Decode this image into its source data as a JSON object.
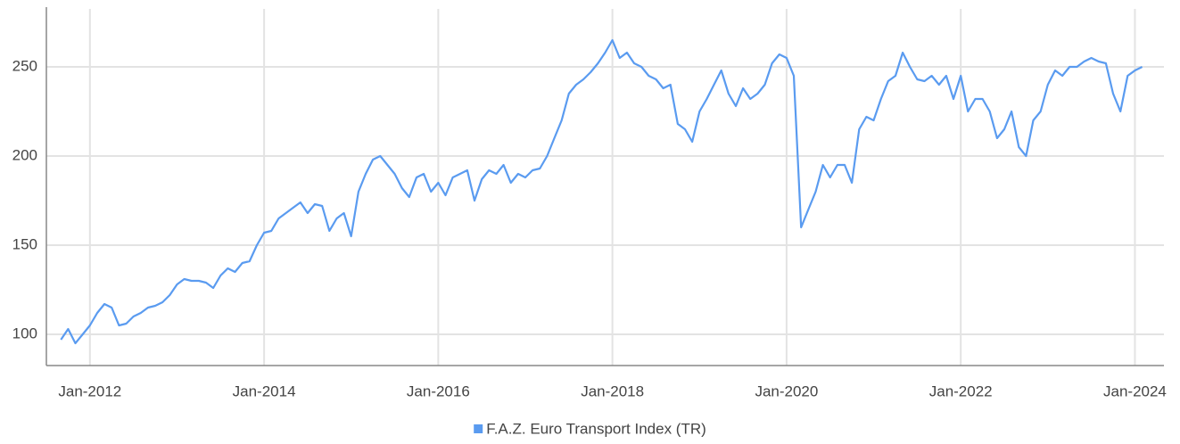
{
  "chart_data": {
    "type": "line",
    "x": [
      "2011-09",
      "2011-10",
      "2011-11",
      "2011-12",
      "2012-01",
      "2012-02",
      "2012-03",
      "2012-04",
      "2012-05",
      "2012-06",
      "2012-07",
      "2012-08",
      "2012-09",
      "2012-10",
      "2012-11",
      "2012-12",
      "2013-01",
      "2013-02",
      "2013-03",
      "2013-04",
      "2013-05",
      "2013-06",
      "2013-07",
      "2013-08",
      "2013-09",
      "2013-10",
      "2013-11",
      "2013-12",
      "2014-01",
      "2014-02",
      "2014-03",
      "2014-04",
      "2014-05",
      "2014-06",
      "2014-07",
      "2014-08",
      "2014-09",
      "2014-10",
      "2014-11",
      "2014-12",
      "2015-01",
      "2015-02",
      "2015-03",
      "2015-04",
      "2015-05",
      "2015-06",
      "2015-07",
      "2015-08",
      "2015-09",
      "2015-10",
      "2015-11",
      "2015-12",
      "2016-01",
      "2016-02",
      "2016-03",
      "2016-04",
      "2016-05",
      "2016-06",
      "2016-07",
      "2016-08",
      "2016-09",
      "2016-10",
      "2016-11",
      "2016-12",
      "2017-01",
      "2017-02",
      "2017-03",
      "2017-04",
      "2017-05",
      "2017-06",
      "2017-07",
      "2017-08",
      "2017-09",
      "2017-10",
      "2017-11",
      "2017-12",
      "2018-01",
      "2018-02",
      "2018-03",
      "2018-04",
      "2018-05",
      "2018-06",
      "2018-07",
      "2018-08",
      "2018-09",
      "2018-10",
      "2018-11",
      "2018-12",
      "2019-01",
      "2019-02",
      "2019-03",
      "2019-04",
      "2019-05",
      "2019-06",
      "2019-07",
      "2019-08",
      "2019-09",
      "2019-10",
      "2019-11",
      "2019-12",
      "2020-01",
      "2020-02",
      "2020-03",
      "2020-04",
      "2020-05",
      "2020-06",
      "2020-07",
      "2020-08",
      "2020-09",
      "2020-10",
      "2020-11",
      "2020-12",
      "2021-01",
      "2021-02",
      "2021-03",
      "2021-04",
      "2021-05",
      "2021-06",
      "2021-07",
      "2021-08",
      "2021-09",
      "2021-10",
      "2021-11",
      "2021-12",
      "2022-01",
      "2022-02",
      "2022-03",
      "2022-04",
      "2022-05",
      "2022-06",
      "2022-07",
      "2022-08",
      "2022-09",
      "2022-10",
      "2022-11",
      "2022-12",
      "2023-01",
      "2023-02",
      "2023-03",
      "2023-04",
      "2023-05",
      "2023-06",
      "2023-07",
      "2023-08",
      "2023-09",
      "2023-10",
      "2023-11",
      "2023-12",
      "2024-01",
      "2024-02"
    ],
    "series": [
      {
        "name": "F.A.Z. Euro Transport Index (TR)",
        "color": "#5a9bf0",
        "values": [
          97,
          103,
          95,
          100,
          105,
          112,
          117,
          115,
          105,
          106,
          110,
          112,
          115,
          116,
          118,
          122,
          128,
          131,
          130,
          130,
          129,
          126,
          133,
          137,
          135,
          140,
          141,
          150,
          157,
          158,
          165,
          168,
          171,
          174,
          168,
          173,
          172,
          158,
          165,
          168,
          155,
          180,
          190,
          198,
          200,
          195,
          190,
          182,
          177,
          188,
          190,
          180,
          185,
          178,
          188,
          190,
          192,
          175,
          187,
          192,
          190,
          195,
          185,
          190,
          188,
          192,
          193,
          200,
          210,
          220,
          235,
          240,
          243,
          247,
          252,
          258,
          265,
          255,
          258,
          252,
          250,
          245,
          243,
          238,
          240,
          218,
          215,
          208,
          225,
          232,
          240,
          248,
          235,
          228,
          238,
          232,
          235,
          240,
          252,
          257,
          255,
          245,
          160,
          170,
          180,
          195,
          188,
          195,
          195,
          185,
          215,
          222,
          220,
          232,
          242,
          245,
          258,
          250,
          243,
          242,
          245,
          240,
          245,
          232,
          245,
          225,
          232,
          232,
          225,
          210,
          215,
          225,
          205,
          200,
          220,
          225,
          240,
          248,
          245,
          250,
          250,
          253,
          255,
          253,
          252,
          235,
          225,
          245,
          248,
          250
        ]
      }
    ],
    "xlim": [
      "2011-07",
      "2024-05"
    ],
    "xticks": [
      {
        "value": "2012-01",
        "label": "Jan-2012"
      },
      {
        "value": "2014-01",
        "label": "Jan-2014"
      },
      {
        "value": "2016-01",
        "label": "Jan-2016"
      },
      {
        "value": "2018-01",
        "label": "Jan-2018"
      },
      {
        "value": "2020-01",
        "label": "Jan-2020"
      },
      {
        "value": "2022-01",
        "label": "Jan-2022"
      },
      {
        "value": "2024-01",
        "label": "Jan-2024"
      }
    ],
    "ylim": [
      82.5,
      282.5
    ],
    "yticks": [
      100,
      150,
      200,
      250
    ],
    "grid": true,
    "legend": "bottom"
  }
}
